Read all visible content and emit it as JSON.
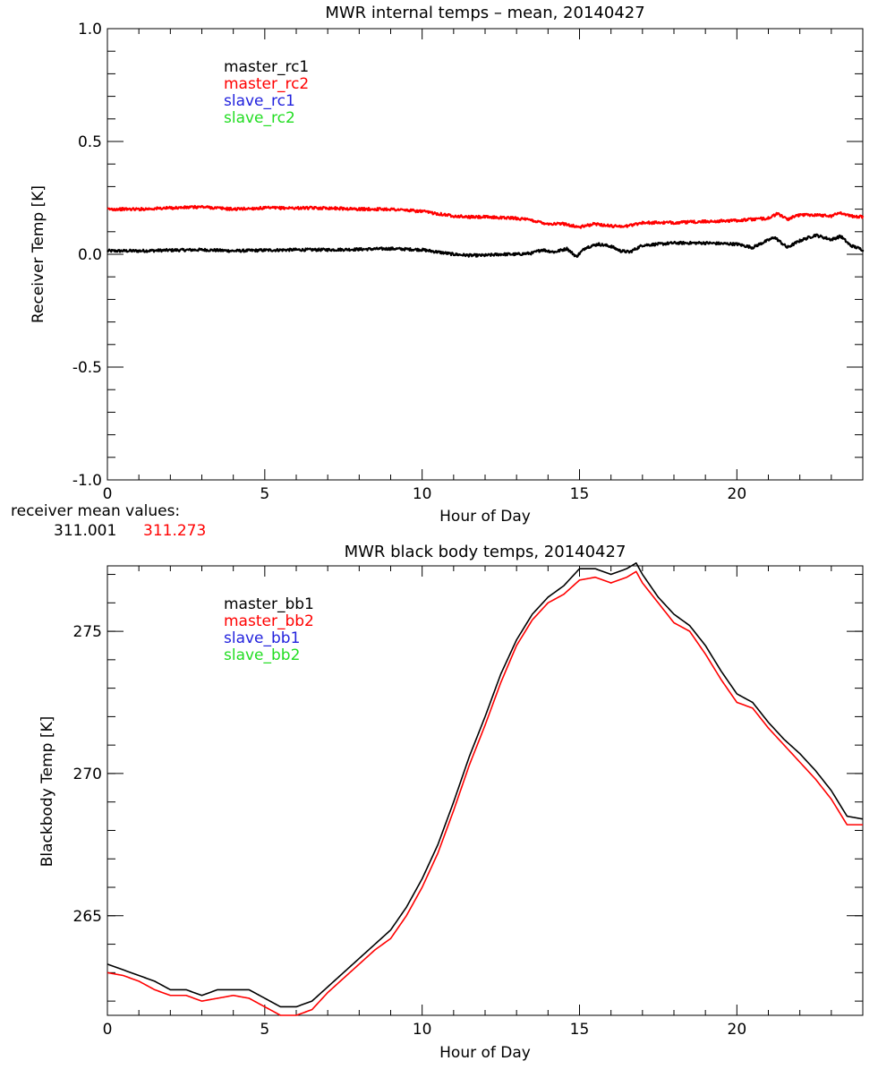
{
  "chart_data": [
    {
      "type": "line",
      "title": "MWR internal temps – mean, 20140427",
      "xlabel": "Hour of Day",
      "ylabel": "Receiver Temp [K]",
      "xlim": [
        0,
        24
      ],
      "ylim": [
        -1.0,
        1.0
      ],
      "xticks": [
        0,
        5,
        10,
        15,
        20
      ],
      "xtick_labels": [
        "0",
        "5",
        "10",
        "15",
        "20"
      ],
      "yticks": [
        -1.0,
        -0.5,
        0.0,
        0.5,
        1.0
      ],
      "ytick_labels": [
        "-1.0",
        "-0.5",
        "0.0",
        "0.5",
        "1.0"
      ],
      "legend_position": "top-left",
      "legend": [
        {
          "label": "master_rc1",
          "color": "#000000"
        },
        {
          "label": "master_rc2",
          "color": "#ff0000"
        },
        {
          "label": "slave_rc1",
          "color": "#2222dd"
        },
        {
          "label": "slave_rc2",
          "color": "#22dd22"
        }
      ],
      "series": [
        {
          "name": "master_rc1",
          "color": "#000000",
          "x": [
            0,
            1,
            2,
            3,
            4,
            5,
            6,
            7,
            8,
            9,
            10,
            10.5,
            11,
            11.5,
            12,
            12.5,
            13,
            13.5,
            13.8,
            14.2,
            14.6,
            14.9,
            15.2,
            15.6,
            16,
            16.3,
            16.6,
            17,
            17.5,
            18,
            19,
            20,
            20.5,
            20.8,
            21.2,
            21.6,
            22,
            22.5,
            23,
            23.3,
            23.6,
            24
          ],
          "y": [
            0.015,
            0.015,
            0.018,
            0.02,
            0.015,
            0.018,
            0.02,
            0.02,
            0.022,
            0.025,
            0.02,
            0.01,
            0.0,
            -0.005,
            -0.005,
            0.0,
            0.0,
            0.005,
            0.02,
            0.01,
            0.025,
            -0.01,
            0.03,
            0.045,
            0.035,
            0.015,
            0.01,
            0.04,
            0.045,
            0.05,
            0.05,
            0.045,
            0.03,
            0.05,
            0.075,
            0.03,
            0.06,
            0.085,
            0.065,
            0.08,
            0.04,
            0.02
          ]
        },
        {
          "name": "master_rc2",
          "color": "#ff0000",
          "x": [
            0,
            1,
            2,
            3,
            4,
            5,
            6,
            7,
            8,
            9,
            10,
            10.5,
            11,
            11.5,
            12,
            13,
            13.5,
            14,
            14.5,
            15,
            15.5,
            16,
            16.5,
            17,
            18,
            19,
            20,
            20.5,
            21,
            21.3,
            21.6,
            22,
            22.5,
            23,
            23.3,
            23.6,
            24
          ],
          "y": [
            0.2,
            0.2,
            0.205,
            0.21,
            0.2,
            0.205,
            0.205,
            0.205,
            0.2,
            0.2,
            0.19,
            0.18,
            0.17,
            0.165,
            0.165,
            0.16,
            0.15,
            0.135,
            0.135,
            0.12,
            0.135,
            0.125,
            0.125,
            0.14,
            0.14,
            0.145,
            0.15,
            0.155,
            0.16,
            0.18,
            0.155,
            0.175,
            0.175,
            0.17,
            0.185,
            0.17,
            0.165
          ]
        }
      ],
      "footer_label": "receiver mean values:",
      "footer_values": [
        {
          "text": "311.001",
          "color": "#000000"
        },
        {
          "text": "311.273",
          "color": "#ff0000"
        }
      ]
    },
    {
      "type": "line",
      "title": "MWR black body temps, 20140427",
      "xlabel": "Hour of Day",
      "ylabel": "Blackbody Temp [K]",
      "xlim": [
        0,
        24
      ],
      "ylim": [
        261.5,
        277.3
      ],
      "xticks": [
        0,
        5,
        10,
        15,
        20
      ],
      "xtick_labels": [
        "0",
        "5",
        "10",
        "15",
        "20"
      ],
      "yticks": [
        265,
        270,
        275
      ],
      "ytick_labels": [
        "265",
        "270",
        "275"
      ],
      "legend_position": "top-left",
      "legend": [
        {
          "label": "master_bb1",
          "color": "#000000"
        },
        {
          "label": "master_bb2",
          "color": "#ff0000"
        },
        {
          "label": "slave_bb1",
          "color": "#2222dd"
        },
        {
          "label": "slave_bb2",
          "color": "#22dd22"
        }
      ],
      "series": [
        {
          "name": "master_bb1",
          "color": "#000000",
          "x": [
            0,
            0.5,
            1,
            1.5,
            2,
            2.5,
            3,
            3.5,
            4,
            4.5,
            5,
            5.5,
            6,
            6.5,
            7,
            7.5,
            8,
            8.5,
            9,
            9.5,
            10,
            10.5,
            11,
            11.5,
            12,
            12.5,
            13,
            13.5,
            14,
            14.5,
            15,
            15.5,
            16,
            16.5,
            16.8,
            17,
            17.5,
            18,
            18.5,
            19,
            19.5,
            20,
            20.5,
            21,
            21.5,
            22,
            22.5,
            23,
            23.5,
            24
          ],
          "y": [
            263.3,
            263.1,
            262.9,
            262.7,
            262.4,
            262.4,
            262.2,
            262.4,
            262.4,
            262.4,
            262.1,
            261.8,
            261.8,
            262.0,
            262.5,
            263.0,
            263.5,
            264.0,
            264.5,
            265.3,
            266.3,
            267.5,
            269.0,
            270.6,
            272.0,
            273.5,
            274.7,
            275.6,
            276.2,
            276.6,
            277.2,
            277.2,
            277.0,
            277.2,
            277.4,
            277.0,
            276.2,
            275.6,
            275.2,
            274.5,
            273.6,
            272.8,
            272.5,
            271.8,
            271.2,
            270.7,
            270.1,
            269.4,
            268.5,
            268.4
          ]
        },
        {
          "name": "master_bb2",
          "color": "#ff0000",
          "x": [
            0,
            0.5,
            1,
            1.5,
            2,
            2.5,
            3,
            3.5,
            4,
            4.5,
            5,
            5.5,
            6,
            6.5,
            7,
            7.5,
            8,
            8.5,
            9,
            9.5,
            10,
            10.5,
            11,
            11.5,
            12,
            12.5,
            13,
            13.5,
            14,
            14.5,
            15,
            15.5,
            16,
            16.5,
            16.8,
            17,
            17.5,
            18,
            18.5,
            19,
            19.5,
            20,
            20.5,
            21,
            21.5,
            22,
            22.5,
            23,
            23.5,
            24
          ],
          "y": [
            263.0,
            262.9,
            262.7,
            262.4,
            262.2,
            262.2,
            262.0,
            262.1,
            262.2,
            262.1,
            261.8,
            261.5,
            261.5,
            261.7,
            262.3,
            262.8,
            263.3,
            263.8,
            264.2,
            265.0,
            266.0,
            267.2,
            268.7,
            270.3,
            271.7,
            273.2,
            274.5,
            275.4,
            276.0,
            276.3,
            276.8,
            276.9,
            276.7,
            276.9,
            277.1,
            276.7,
            276.0,
            275.3,
            275.0,
            274.2,
            273.3,
            272.5,
            272.3,
            271.6,
            271.0,
            270.4,
            269.8,
            269.1,
            268.2,
            268.2
          ]
        }
      ]
    }
  ]
}
